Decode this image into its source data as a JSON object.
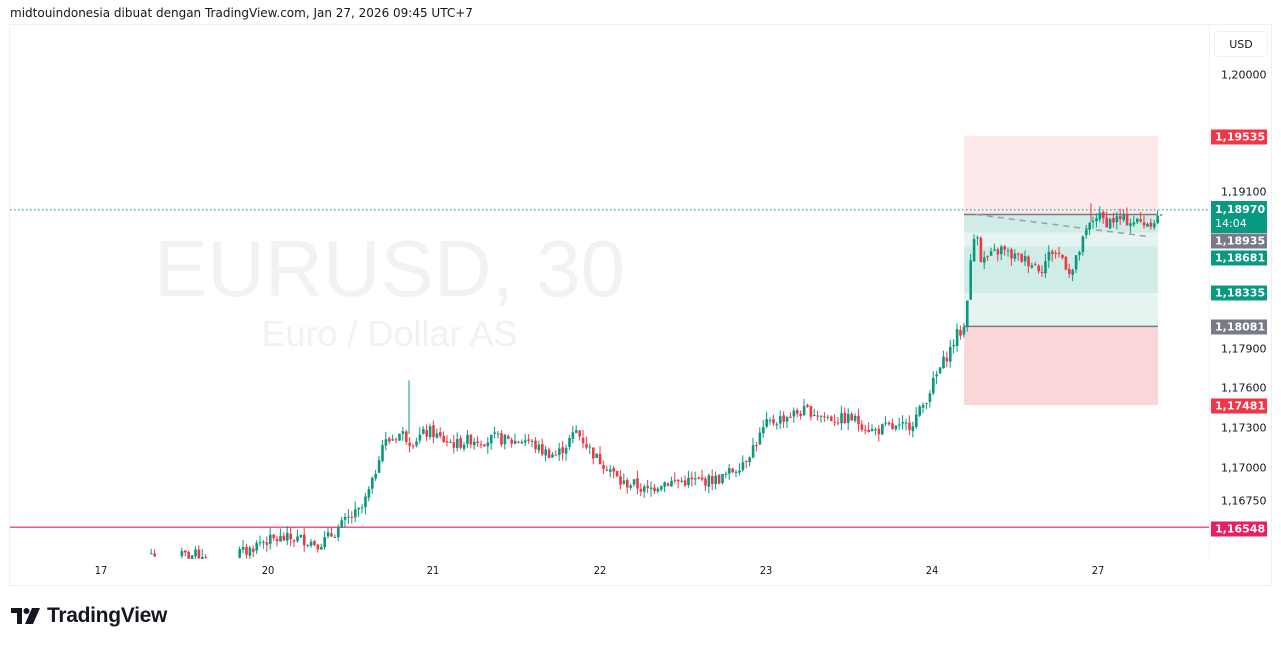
{
  "header": {
    "attribution": "midtouindonesia dibuat dengan TradingView.com, Jan 27, 2026 09:45 UTC+7"
  },
  "watermark": {
    "symbol": "EURUSD, 30",
    "description": "Euro / Dollar AS"
  },
  "price_axis": {
    "currency_button": "USD",
    "ticks": [
      "1,20000",
      "1,19100",
      "1,17900",
      "1,17600",
      "1,17300",
      "1,17000",
      "1,16750"
    ],
    "tags": {
      "target": "1,19535",
      "last_price": "1,18970",
      "countdown": "14:04",
      "gray_upper": "1,18935",
      "green_upper": "1,18681",
      "green_lower": "1,18335",
      "entry": "1,18081",
      "stop": "1,17481",
      "horizontal_line": "1,16548"
    }
  },
  "time_axis": {
    "labels": [
      "17",
      "20",
      "21",
      "22",
      "23",
      "24",
      "27"
    ]
  },
  "footer": {
    "brand": "TradingView"
  },
  "colors": {
    "up": "#089981",
    "down": "#f23645",
    "hline": "#e91e63",
    "gray_tag": "#787b86",
    "target_zone": "#fde8ea",
    "stop_zone": "#fbd6d9",
    "profit_zone": "#d0ece6",
    "profit_zone_light": "#e5f4f1"
  },
  "chart_data": {
    "type": "candlestick",
    "title": "EURUSD, 30",
    "subtitle": "Euro / Dollar AS",
    "xlabel": "",
    "ylabel": "USD",
    "ylim": [
      1.1635,
      1.2025
    ],
    "x_tick_labels": [
      "17",
      "20",
      "21",
      "22",
      "23",
      "24",
      "27"
    ],
    "y_tick_labels": [
      "1,20000",
      "1,19100",
      "1,17900",
      "1,17600",
      "1,17300",
      "1,17000",
      "1,16750"
    ],
    "horizontal_line": 1.16548,
    "last_price": 1.1897,
    "position_tool": {
      "type": "long",
      "entry": 1.18081,
      "target": 1.19535,
      "stop": 1.17481,
      "levels": [
        1.18935,
        1.18681,
        1.18335
      ]
    },
    "close_path": [
      [
        150,
        1.1635
      ],
      [
        185,
        1.1633
      ],
      [
        200,
        1.1634
      ],
      [
        245,
        1.1636
      ],
      [
        260,
        1.1644
      ],
      [
        280,
        1.1646
      ],
      [
        300,
        1.1646
      ],
      [
        318,
        1.1642
      ],
      [
        332,
        1.165
      ],
      [
        345,
        1.166
      ],
      [
        360,
        1.1668
      ],
      [
        372,
        1.169
      ],
      [
        380,
        1.1718
      ],
      [
        390,
        1.1722
      ],
      [
        400,
        1.1727
      ],
      [
        410,
        1.172
      ],
      [
        420,
        1.1725
      ],
      [
        430,
        1.1728
      ],
      [
        440,
        1.1722
      ],
      [
        455,
        1.1718
      ],
      [
        470,
        1.1722
      ],
      [
        485,
        1.1721
      ],
      [
        495,
        1.1723
      ],
      [
        510,
        1.172
      ],
      [
        525,
        1.1722
      ],
      [
        540,
        1.1713
      ],
      [
        555,
        1.171
      ],
      [
        565,
        1.1718
      ],
      [
        575,
        1.1728
      ],
      [
        585,
        1.1718
      ],
      [
        595,
        1.1708
      ],
      [
        608,
        1.17
      ],
      [
        620,
        1.1688
      ],
      [
        632,
        1.1688
      ],
      [
        645,
        1.1682
      ],
      [
        660,
        1.1689
      ],
      [
        680,
        1.169
      ],
      [
        700,
        1.169
      ],
      [
        720,
        1.1692
      ],
      [
        735,
        1.17
      ],
      [
        745,
        1.1708
      ],
      [
        755,
        1.172
      ],
      [
        765,
        1.1733
      ],
      [
        780,
        1.1738
      ],
      [
        795,
        1.1742
      ],
      [
        808,
        1.1744
      ],
      [
        820,
        1.174
      ],
      [
        835,
        1.1737
      ],
      [
        850,
        1.1738
      ],
      [
        862,
        1.1733
      ],
      [
        872,
        1.1728
      ],
      [
        885,
        1.1731
      ],
      [
        898,
        1.173
      ],
      [
        910,
        1.1734
      ],
      [
        920,
        1.1745
      ],
      [
        930,
        1.1762
      ],
      [
        940,
        1.1778
      ],
      [
        950,
        1.1792
      ],
      [
        957,
        1.1804
      ],
      [
        962,
        1.1803
      ],
      [
        970,
        1.186
      ],
      [
        975,
        1.1887
      ],
      [
        980,
        1.1858
      ],
      [
        990,
        1.1862
      ],
      [
        1000,
        1.1867
      ],
      [
        1010,
        1.1862
      ],
      [
        1020,
        1.186
      ],
      [
        1030,
        1.1857
      ],
      [
        1040,
        1.1852
      ],
      [
        1050,
        1.1866
      ],
      [
        1060,
        1.1862
      ],
      [
        1070,
        1.1848
      ],
      [
        1080,
        1.187
      ],
      [
        1088,
        1.1885
      ],
      [
        1095,
        1.1893
      ],
      [
        1105,
        1.1888
      ],
      [
        1115,
        1.189
      ],
      [
        1125,
        1.1889
      ],
      [
        1135,
        1.1888
      ],
      [
        1145,
        1.1887
      ],
      [
        1155,
        1.189
      ],
      [
        1163,
        1.1898
      ]
    ]
  }
}
